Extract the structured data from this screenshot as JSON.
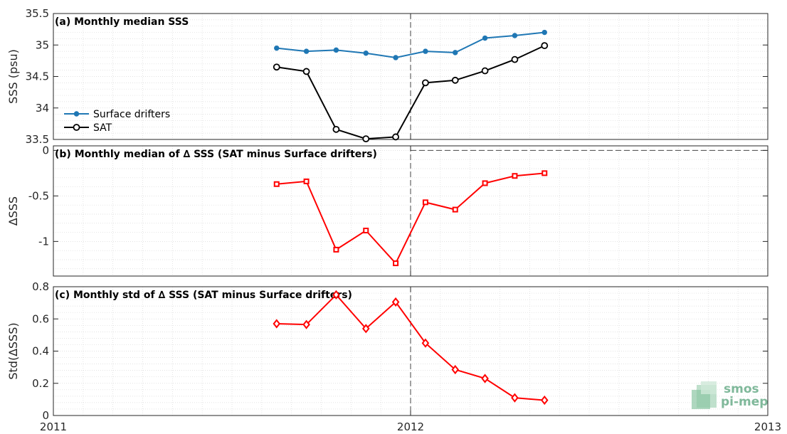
{
  "chart_data": [
    {
      "type": "line",
      "title": "(a) Monthly median SSS",
      "ylabel": "SSS (psu)",
      "xlim": [
        "2011",
        "2013"
      ],
      "ylim": [
        33.5,
        35.5
      ],
      "yticks": [
        "33.5",
        "34",
        "34.5",
        "35",
        "35.5"
      ],
      "grid": true,
      "legend": "center-left",
      "series": [
        {
          "name": "Surface drifters",
          "color": "#1f77b4",
          "marker": "dot",
          "x": [
            "2011-08",
            "2011-09",
            "2011-10",
            "2011-11",
            "2011-12",
            "2012-01",
            "2012-02",
            "2012-03",
            "2012-04",
            "2012-05"
          ],
          "y": [
            34.95,
            34.9,
            34.92,
            34.87,
            34.8,
            34.9,
            34.88,
            35.11,
            35.15,
            35.2
          ]
        },
        {
          "name": "SAT",
          "color": "#000000",
          "marker": "circle",
          "x": [
            "2011-08",
            "2011-09",
            "2011-10",
            "2011-11",
            "2011-12",
            "2012-01",
            "2012-02",
            "2012-03",
            "2012-04",
            "2012-05"
          ],
          "y": [
            34.65,
            34.58,
            33.66,
            33.51,
            33.54,
            34.4,
            34.44,
            34.59,
            34.77,
            34.99
          ]
        }
      ]
    },
    {
      "type": "line",
      "title": "(b) Monthly median of ∆ SSS (SAT minus Surface drifters)",
      "ylabel": "∆SSS",
      "xlim": [
        "2011",
        "2013"
      ],
      "ylim": [
        -1.38,
        0.05
      ],
      "yticks": [
        "-1",
        "-0.5",
        "0"
      ],
      "grid": true,
      "series": [
        {
          "color": "#ff0000",
          "marker": "square",
          "x": [
            "2011-08",
            "2011-09",
            "2011-10",
            "2011-11",
            "2011-12",
            "2012-01",
            "2012-02",
            "2012-03",
            "2012-04",
            "2012-05"
          ],
          "y": [
            -0.37,
            -0.34,
            -1.09,
            -0.88,
            -1.24,
            -0.57,
            -0.65,
            -0.36,
            -0.28,
            -0.25
          ]
        }
      ]
    },
    {
      "type": "line",
      "title": "(c) Monthly std of ∆ SSS (SAT minus Surface drifters)",
      "ylabel": "Std(∆SSS)",
      "xlim": [
        "2011",
        "2013"
      ],
      "ylim": [
        0,
        0.8
      ],
      "yticks": [
        "0",
        "0.2",
        "0.4",
        "0.6",
        "0.8"
      ],
      "xticks": [
        "2011",
        "2012",
        "2013"
      ],
      "grid": true,
      "series": [
        {
          "color": "#ff0000",
          "marker": "diamond",
          "x": [
            "2011-08",
            "2011-09",
            "2011-10",
            "2011-11",
            "2011-12",
            "2012-01",
            "2012-02",
            "2012-03",
            "2012-04",
            "2012-05"
          ],
          "y": [
            0.57,
            0.565,
            0.75,
            0.54,
            0.705,
            0.45,
            0.285,
            0.23,
            0.11,
            0.095
          ]
        }
      ]
    }
  ],
  "logo": {
    "line1": "smos",
    "line2": "pi-mep",
    "color": "#7fb89a"
  },
  "reference_year": "2012"
}
